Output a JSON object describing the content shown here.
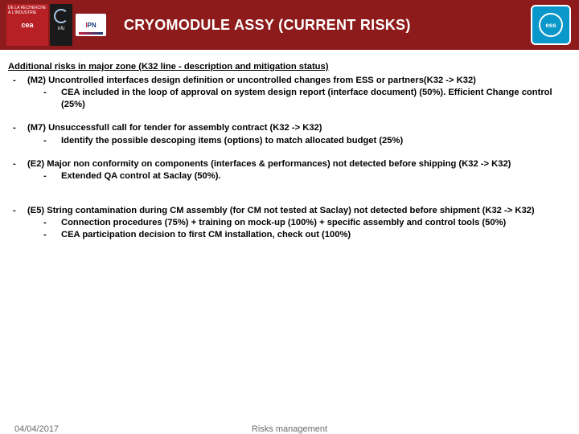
{
  "header": {
    "logos": {
      "cea_text": "cea",
      "cea_top": "DE LA RECHERCHE À L'INDUSTRIE",
      "irfu_text": "Irfu",
      "ipn_i": "I",
      "ipn_pn": "PN",
      "ess_text": "ess"
    },
    "title": "CRYOMODULE ASSY (CURRENT RISKS)",
    "colors": {
      "bar": "#8d1b1b",
      "cea": "#b72025",
      "ess": "#0a97c9"
    }
  },
  "section_title": "Additional risks in major zone (K32 line - description and mitigation status)",
  "risks": [
    {
      "main": "(M2) Uncontrolled interfaces design definition or uncontrolled changes from ESS or partners(K32 -> K32)",
      "subs": [
        "CEA included in the loop of approval on system design report (interface document) (50%). Efficient Change control (25%)"
      ]
    },
    {
      "main": "(M7) Unsuccessfull call for tender for assembly contract (K32 -> K32)",
      "subs": [
        "Identify the possible descoping items (options) to match allocated budget (25%)"
      ]
    },
    {
      "main": "(E2) Major non conformity on components (interfaces & performances)  not detected before shipping (K32 -> K32)",
      "subs": [
        "Extended QA control at Saclay (50%)."
      ]
    },
    {
      "main": "(E5) String contamination during CM assembly (for CM not tested at Saclay) not detected before shipment (K32 -> K32)",
      "subs": [
        "Connection procedures (75%) + training on mock-up (100%) + specific assembly and control tools (50%)",
        "CEA participation decision to first CM installation, check out (100%)"
      ]
    }
  ],
  "footer": {
    "date": "04/04/2017",
    "title": "Risks management"
  }
}
